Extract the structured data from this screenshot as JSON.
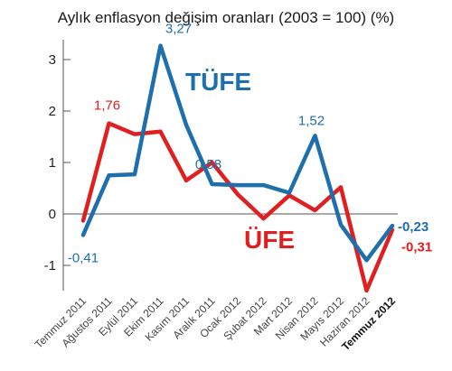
{
  "chart_data": {
    "type": "line",
    "title": "Aylık enflasyon değişim oranları (2003 = 100) (%)",
    "categories": [
      "Temmuz 2011",
      "Ağustos 2011",
      "Eylül 2011",
      "Ekim 2011",
      "Kasım 2011",
      "Aralık 2011",
      "Ocak 2012",
      "Şubat 2012",
      "Mart 2012",
      "Nisan 2012",
      "Mayıs 2012",
      "Haziran 2012",
      "Temmuz 2012"
    ],
    "ylim": [
      -1.5,
      3.3
    ],
    "yticks": [
      "3",
      "2",
      "1",
      "0",
      "-1"
    ],
    "grid": false,
    "series": [
      {
        "name": "TÜFE",
        "color": "#1f6fad",
        "values": [
          -0.41,
          0.75,
          0.77,
          3.27,
          1.73,
          0.58,
          0.56,
          0.56,
          0.41,
          1.52,
          -0.21,
          -0.9,
          -0.23
        ],
        "labels": [
          {
            "index": 0,
            "text": "-0,41"
          },
          {
            "index": 3,
            "text": "3,27"
          },
          {
            "index": 5,
            "text": "0,58"
          },
          {
            "index": 9,
            "text": "1,52"
          },
          {
            "index": 12,
            "text": "-0,23"
          }
        ]
      },
      {
        "name": "ÜFE",
        "color": "#e02020",
        "values": [
          -0.13,
          1.76,
          1.55,
          1.6,
          0.65,
          1.0,
          0.38,
          -0.09,
          0.36,
          0.07,
          0.52,
          -1.49,
          -0.31
        ],
        "labels": [
          {
            "index": 1,
            "text": "1,76"
          },
          {
            "index": 12,
            "text": "-0,31"
          }
        ]
      }
    ]
  }
}
